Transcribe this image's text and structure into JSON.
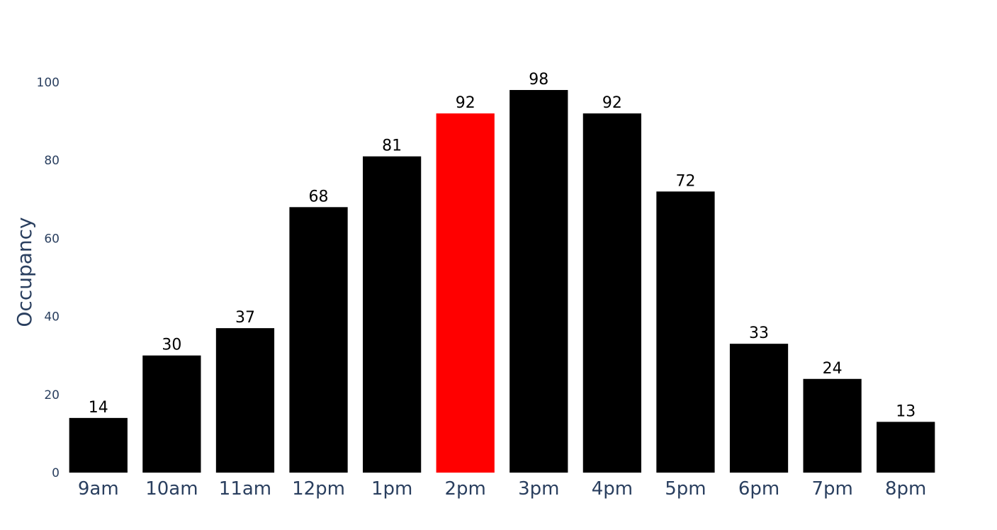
{
  "chart_data": {
    "type": "bar",
    "title": "",
    "xlabel": "",
    "ylabel": "Occupancy",
    "categories": [
      "9am",
      "10am",
      "11am",
      "12pm",
      "1pm",
      "2pm",
      "3pm",
      "4pm",
      "5pm",
      "6pm",
      "7pm",
      "8pm"
    ],
    "values": [
      14,
      30,
      37,
      68,
      81,
      92,
      98,
      92,
      72,
      33,
      24,
      13
    ],
    "ylim": [
      0,
      100
    ],
    "yticks": [
      0,
      20,
      40,
      60,
      80,
      100
    ],
    "grid": false,
    "legend": "none",
    "data_labels": true,
    "highlight_category": "2pm",
    "colors": {
      "bar": "#000000",
      "highlight": "#ff0000",
      "axis_text": "#2a3f5f",
      "data_label": "#000000"
    }
  }
}
